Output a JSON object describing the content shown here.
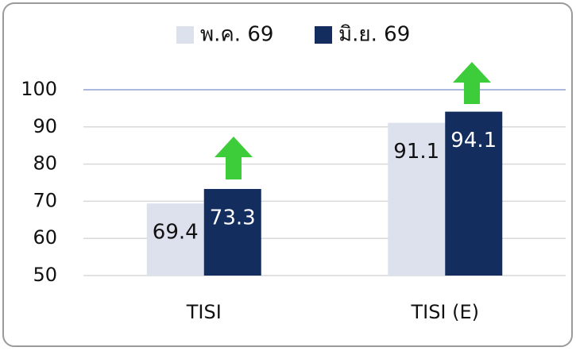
{
  "chart_data": {
    "type": "bar",
    "categories": [
      "TISI",
      "TISI (E)"
    ],
    "series": [
      {
        "name": "พ.ค. 69",
        "color": "#dde1ee",
        "values": [
          69.4,
          91.1
        ]
      },
      {
        "name": "มิ.ย. 69",
        "color": "#132d5e",
        "values": [
          73.3,
          94.1
        ]
      }
    ],
    "ylim": [
      50,
      100
    ],
    "yticks": [
      50,
      60,
      70,
      80,
      90,
      100
    ],
    "grid": true
  }
}
